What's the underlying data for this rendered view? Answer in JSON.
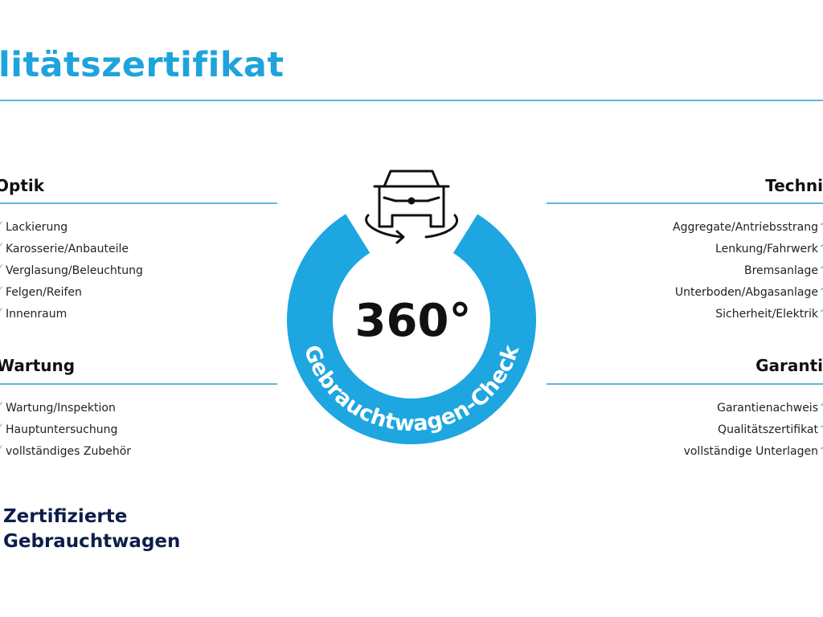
{
  "header": {
    "title": "litätszertifikat"
  },
  "left_sections": [
    {
      "heading": "Optik",
      "items": [
        "Lackierung",
        "Karosserie/Anbauteile",
        "Verglasung/Beleuchtung",
        "Felgen/Reifen",
        "Innenraum"
      ]
    },
    {
      "heading": "Wartung",
      "items": [
        "Wartung/Inspektion",
        "Hauptuntersuchung",
        "vollständiges Zubehör"
      ]
    }
  ],
  "right_sections": [
    {
      "heading": "Techni",
      "items": [
        "Aggregate/Antriebsstrang",
        "Lenkung/Fahrwerk",
        "Bremsanlage",
        "Unterboden/Abgasanlage",
        "Sicherheit/Elektrik"
      ]
    },
    {
      "heading": "Garanti",
      "items": [
        "Garantienachweis",
        "Qualitätszertifikat",
        "vollständige Unterlagen"
      ]
    }
  ],
  "badge": {
    "degrees": "360°",
    "ring_text": "Gebrauchtwagen-Check",
    "icon": "car-rotate-icon",
    "ring_color": "#1da6e0"
  },
  "brand": {
    "line1": "Zertifizierte",
    "line2": "Gebrauchtwagen"
  },
  "colors": {
    "accent": "#1fa3dc",
    "brand_navy": "#0d1e4a"
  }
}
